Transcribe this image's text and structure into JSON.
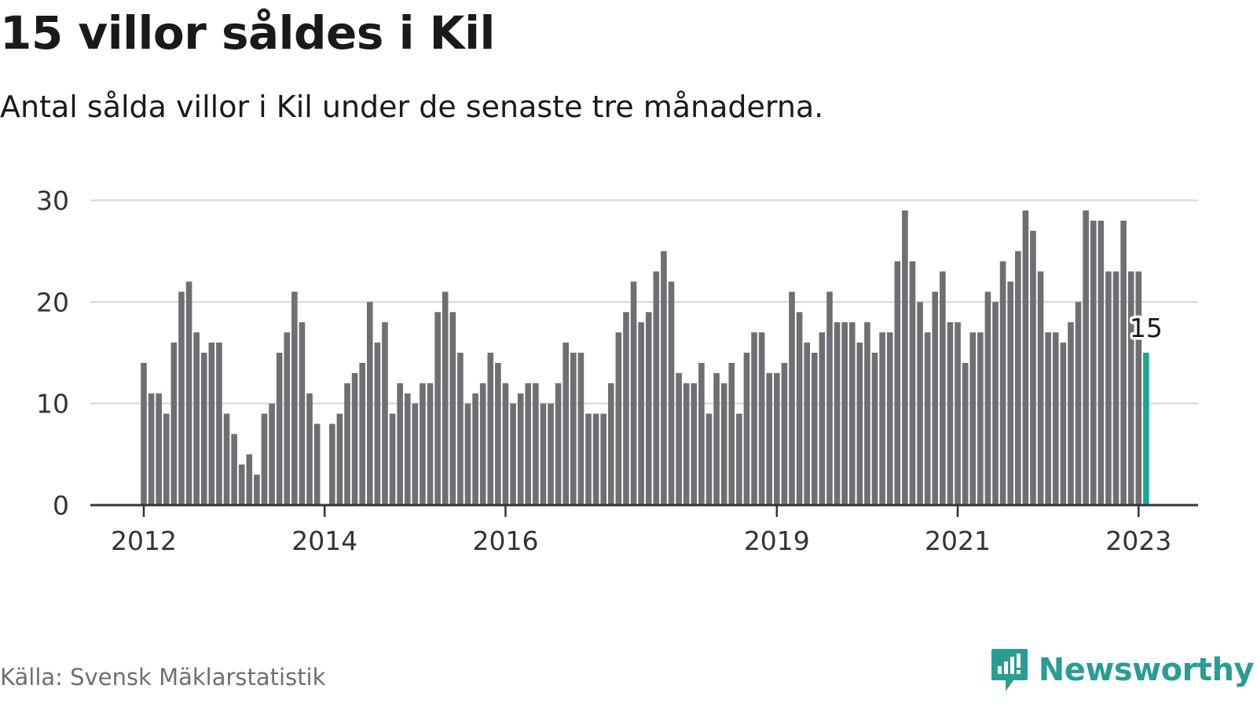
{
  "title": "15 villor såldes i Kil",
  "subtitle": "Antal sålda villor i Kil under de senaste tre månaderna.",
  "source": "Källa: Svensk Mäklarstatistik",
  "brand": {
    "name": "Newsworthy",
    "icon": "newsworthy-logo-icon",
    "color": "#2a9c94"
  },
  "colors": {
    "bar": "#6f6f73",
    "highlight": "#1aa59c",
    "grid": "#dcdcdc",
    "axis": "#333333"
  },
  "chart_data": {
    "type": "bar",
    "x": [
      "2012-01",
      "2012-02",
      "2012-03",
      "2012-04",
      "2012-05",
      "2012-06",
      "2012-07",
      "2012-08",
      "2012-09",
      "2012-10",
      "2012-11",
      "2012-12",
      "2013-01",
      "2013-02",
      "2013-03",
      "2013-04",
      "2013-05",
      "2013-06",
      "2013-07",
      "2013-08",
      "2013-09",
      "2013-10",
      "2013-11",
      "2013-12",
      "2014-01",
      "2014-02",
      "2014-03",
      "2014-04",
      "2014-05",
      "2014-06",
      "2014-07",
      "2014-08",
      "2014-09",
      "2014-10",
      "2014-11",
      "2014-12",
      "2015-01",
      "2015-02",
      "2015-03",
      "2015-04",
      "2015-05",
      "2015-06",
      "2015-07",
      "2015-08",
      "2015-09",
      "2015-10",
      "2015-11",
      "2015-12",
      "2016-01",
      "2016-02",
      "2016-03",
      "2016-04",
      "2016-05",
      "2016-06",
      "2016-07",
      "2016-08",
      "2016-09",
      "2016-10",
      "2016-11",
      "2016-12",
      "2017-01",
      "2017-02",
      "2017-03",
      "2017-04",
      "2017-05",
      "2017-06",
      "2017-07",
      "2017-08",
      "2017-09",
      "2017-10",
      "2017-11",
      "2017-12",
      "2018-01",
      "2018-02",
      "2018-03",
      "2018-04",
      "2018-05",
      "2018-06",
      "2018-07",
      "2018-08",
      "2018-09",
      "2018-10",
      "2018-11",
      "2018-12",
      "2019-01",
      "2019-02",
      "2019-03",
      "2019-04",
      "2019-05",
      "2019-06",
      "2019-07",
      "2019-08",
      "2019-09",
      "2019-10",
      "2019-11",
      "2019-12",
      "2020-01",
      "2020-02",
      "2020-03",
      "2020-04",
      "2020-05",
      "2020-06",
      "2020-07",
      "2020-08",
      "2020-09",
      "2020-10",
      "2020-11",
      "2020-12",
      "2021-01",
      "2021-02",
      "2021-03",
      "2021-04",
      "2021-05",
      "2021-06",
      "2021-07",
      "2021-08",
      "2021-09",
      "2021-10",
      "2021-11",
      "2021-12",
      "2022-01",
      "2022-02",
      "2022-03",
      "2022-04",
      "2022-05",
      "2022-06",
      "2022-07",
      "2022-08",
      "2022-09",
      "2022-10",
      "2022-11",
      "2022-12",
      "2023-01",
      "2023-02"
    ],
    "series": [
      {
        "values": [
          14,
          11,
          11,
          9,
          16,
          21,
          22,
          17,
          15,
          16,
          16,
          9,
          7,
          4,
          5,
          3,
          9,
          10,
          15,
          17,
          21,
          18,
          11,
          8,
          null,
          8,
          9,
          12,
          13,
          14,
          20,
          16,
          18,
          9,
          12,
          11,
          10,
          12,
          12,
          19,
          21,
          19,
          15,
          10,
          11,
          12,
          15,
          14,
          12,
          10,
          11,
          12,
          12,
          10,
          10,
          12,
          16,
          15,
          15,
          9,
          9,
          9,
          12,
          17,
          19,
          22,
          18,
          19,
          23,
          25,
          22,
          13,
          12,
          12,
          14,
          9,
          13,
          12,
          14,
          9,
          15,
          17,
          17,
          13,
          13,
          14,
          21,
          19,
          16,
          15,
          17,
          21,
          18,
          18,
          18,
          16,
          18,
          15,
          17,
          17,
          24,
          29,
          24,
          20,
          17,
          21,
          23,
          18,
          18,
          14,
          17,
          17,
          21,
          20,
          24,
          22,
          25,
          29,
          27,
          23,
          17,
          17,
          16,
          18,
          20,
          29,
          28,
          28,
          23,
          23,
          28,
          23,
          23,
          15
        ]
      }
    ],
    "highlight": {
      "x": "2023-02",
      "value": 15,
      "label": "15"
    },
    "x_tick_labels": [
      {
        "x": "2012-01",
        "label": "2012"
      },
      {
        "x": "2014-01",
        "label": "2014"
      },
      {
        "x": "2016-01",
        "label": "2016"
      },
      {
        "x": "2019-01",
        "label": "2019"
      },
      {
        "x": "2021-01",
        "label": "2021"
      },
      {
        "x": "2023-01",
        "label": "2023"
      }
    ],
    "y_ticks": [
      0,
      10,
      20,
      30
    ],
    "ylim": [
      0,
      30
    ],
    "grid": true,
    "xlabel": "",
    "ylabel": ""
  }
}
